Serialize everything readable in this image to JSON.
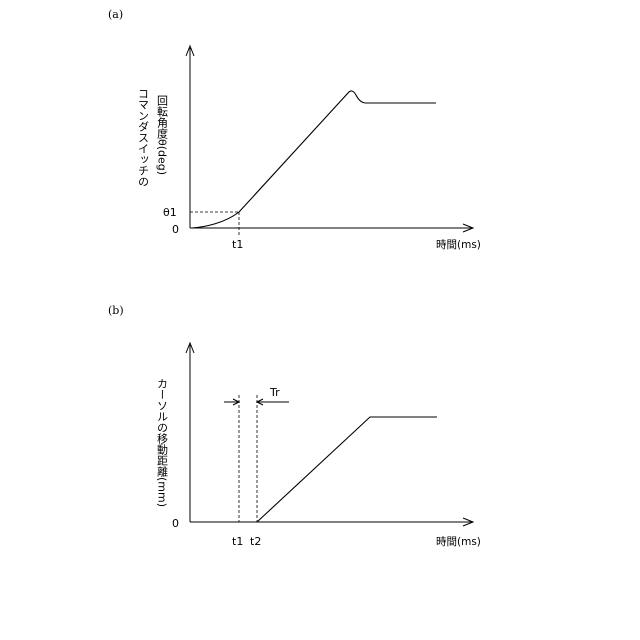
{
  "panel_a": {
    "label": "(a)",
    "ylabel_line1": "コマンダスイッチの",
    "ylabel_line2": "回転角度θ(deg)",
    "xlabel": "時間(ms)",
    "y_tick_theta1": "θ1",
    "y_tick_zero": "0",
    "x_tick_t1": "t1"
  },
  "panel_b": {
    "label": "(b)",
    "ylabel": "カーソルの移動距離(mm)",
    "xlabel": "時間(ms)",
    "y_tick_zero": "0",
    "x_tick_t1": "t1",
    "x_tick_t2": "t2",
    "interval_label": "Tr"
  }
}
